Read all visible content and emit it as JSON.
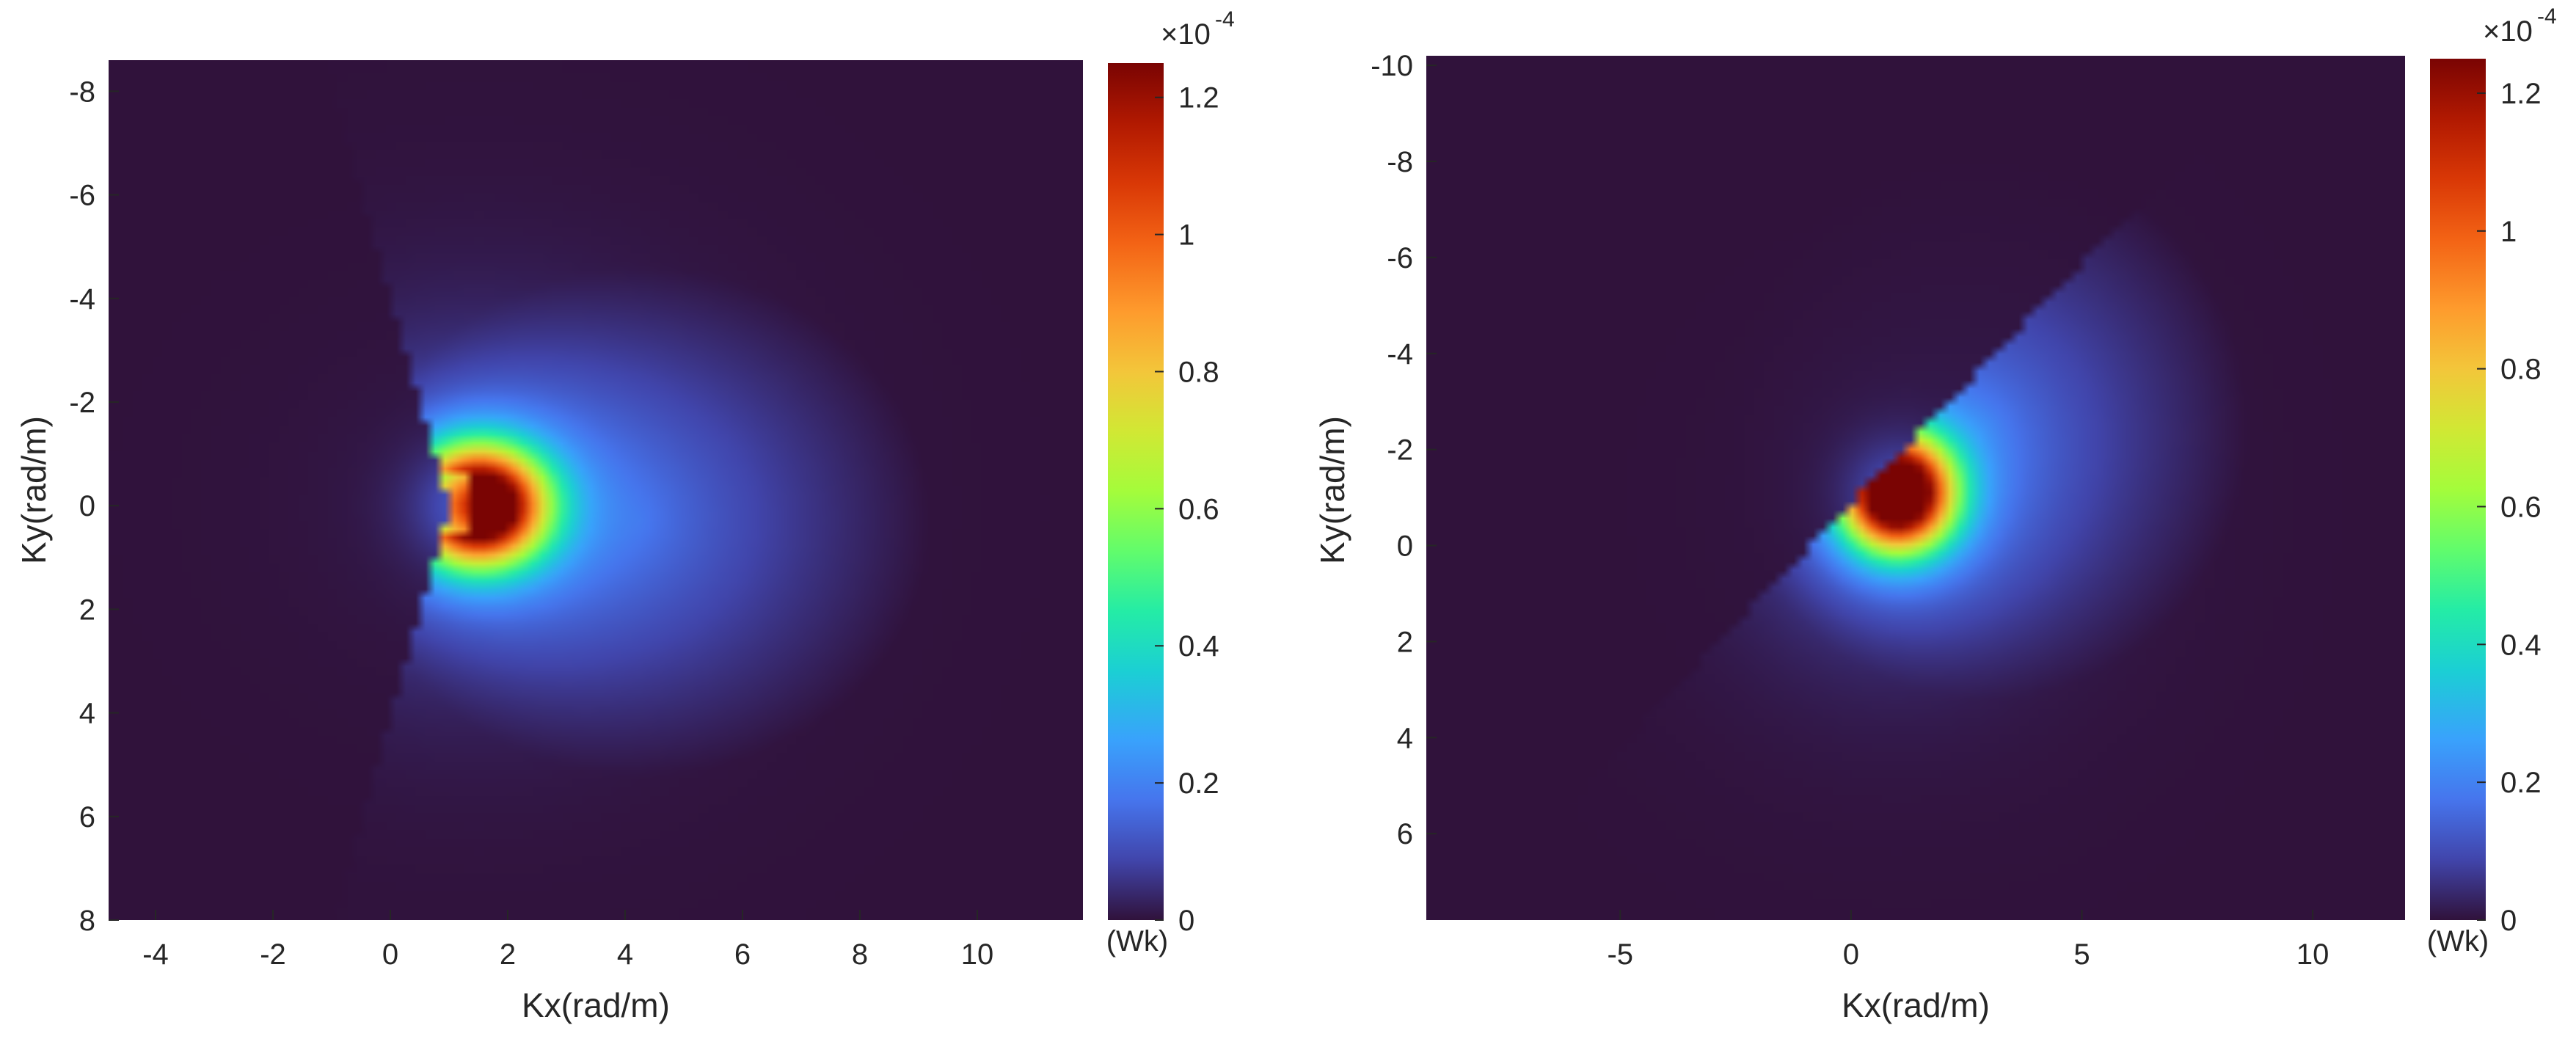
{
  "chart_data": [
    {
      "type": "heatmap",
      "xlabel": "Kx(rad/m)",
      "ylabel": "Ky(rad/m)",
      "xlim": [
        -4.8,
        11.8
      ],
      "ylim": [
        -8.6,
        8.0
      ],
      "y_reversed": true,
      "x_ticks": [
        "-4",
        "-2",
        "0",
        "2",
        "4",
        "6",
        "8",
        "10"
      ],
      "x_tick_values": [
        -4,
        -2,
        0,
        2,
        4,
        6,
        8,
        10
      ],
      "y_ticks": [
        "-8",
        "-6",
        "-4",
        "-2",
        "0",
        "2",
        "4",
        "6",
        "8"
      ],
      "y_tick_values": [
        -8,
        -6,
        -4,
        -2,
        0,
        2,
        4,
        6,
        8
      ],
      "peak": {
        "kx": 1.5,
        "ky": 0.0,
        "value": 0.000125
      },
      "peak_sigma": 0.75,
      "halo": {
        "center_kx": 4.3,
        "center_ky": 0.3,
        "radius": 4.9,
        "level": 1.2e-05
      },
      "colorbar": {
        "range": [
          0,
          0.000125
        ],
        "ticks": [
          "0",
          "0.2",
          "0.4",
          "0.6",
          "0.8",
          "1",
          "1.2"
        ],
        "tick_values": [
          0,
          0.2,
          0.4,
          0.6,
          0.8,
          1.0,
          1.2
        ],
        "exponent": "×10",
        "exponent_power": "-4",
        "label": "(Wk)",
        "colormap": "turbo"
      }
    },
    {
      "type": "heatmap",
      "xlabel": "Kx(rad/m)",
      "ylabel": "Ky(rad/m)",
      "xlim": [
        -9.2,
        12.0
      ],
      "ylim": [
        -10.2,
        7.8
      ],
      "y_reversed": true,
      "x_ticks": [
        "-5",
        "0",
        "5",
        "10"
      ],
      "x_tick_values": [
        -5,
        0,
        5,
        10
      ],
      "y_ticks": [
        "-10",
        "-8",
        "-6",
        "-4",
        "-2",
        "0",
        "2",
        "4",
        "6"
      ],
      "y_tick_values": [
        -10,
        -8,
        -6,
        -4,
        -2,
        0,
        2,
        4,
        6
      ],
      "peak": {
        "kx": 1.0,
        "ky": -1.1,
        "value": 0.000125
      },
      "peak_sigma": 0.8,
      "halo": {
        "center_kx": 2.9,
        "center_ky": -2.5,
        "radius": 5.7,
        "level": 1.2e-05
      },
      "colorbar": {
        "range": [
          0,
          0.000125
        ],
        "ticks": [
          "0",
          "0.2",
          "0.4",
          "0.6",
          "0.8",
          "1",
          "1.2"
        ],
        "tick_values": [
          0,
          0.2,
          0.4,
          0.6,
          0.8,
          1.0,
          1.2
        ],
        "exponent": "×10",
        "exponent_power": "-4",
        "label": "(Wk)",
        "colormap": "turbo"
      }
    }
  ]
}
